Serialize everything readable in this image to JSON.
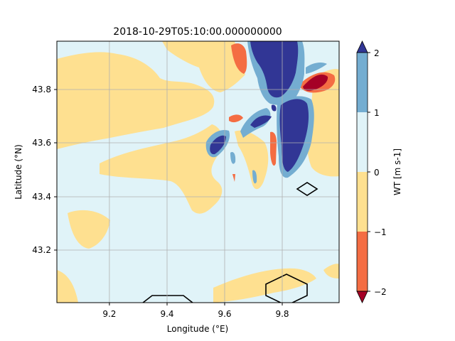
{
  "chart_data": {
    "type": "heatmap",
    "title": "2018-10-29T05:10:00.000000000",
    "xlabel": "Longitude (°E)",
    "ylabel": "Latitude (°N)",
    "xlim": [
      9.0,
      9.98
    ],
    "ylim": [
      43.0,
      43.98
    ],
    "xticks": [
      9.2,
      9.4,
      9.6,
      9.8
    ],
    "xtick_labels": [
      "9.2",
      "9.4",
      "9.6",
      "9.8"
    ],
    "yticks": [
      43.2,
      43.4,
      43.6,
      43.8
    ],
    "ytick_labels": [
      "43.2",
      "43.4",
      "43.6",
      "43.8"
    ],
    "grid": true,
    "colorbar": {
      "label": "WT [m s-1]",
      "ticks": [
        -2,
        -1,
        0,
        1,
        2
      ],
      "tick_labels": [
        "−2",
        "−1",
        "0",
        "1",
        "2"
      ],
      "extend": "both"
    },
    "levels": [
      {
        "range": "> 2",
        "color": "#313695"
      },
      {
        "range": "1 to 2",
        "color": "#74add1"
      },
      {
        "range": "0 to 1",
        "color": "#e0f3f8"
      },
      {
        "range": "-1 to 0",
        "color": "#fee090"
      },
      {
        "range": "-2 to -1",
        "color": "#f46d43"
      },
      {
        "range": "< -2",
        "color": "#a50026"
      }
    ],
    "regions": [
      {
        "level": "< -2",
        "lon": 9.85,
        "lat": 43.83,
        "desc": "strong downdraft core NE"
      },
      {
        "level": "> 2",
        "lon": 9.73,
        "lat": 43.85,
        "desc": "updraft band north"
      },
      {
        "level": "> 2",
        "lon": 9.83,
        "lat": 43.6,
        "desc": "updraft band central"
      },
      {
        "level": "> 2",
        "lon": 9.58,
        "lat": 43.6,
        "desc": "updraft cell west"
      }
    ]
  }
}
